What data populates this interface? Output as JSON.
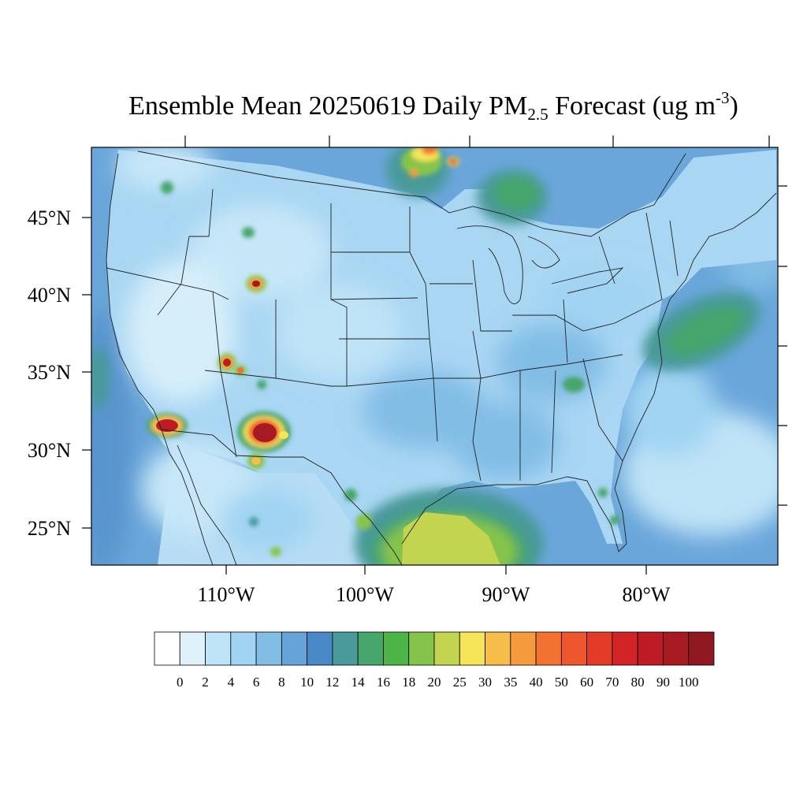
{
  "title": {
    "prefix": "Ensemble Mean 20250619 Daily PM",
    "sub": "2.5",
    "middle": " Forecast (ug m",
    "sup": "-3",
    "suffix": ")"
  },
  "lat_labels": [
    "45°N",
    "40°N",
    "35°N",
    "30°N",
    "25°N"
  ],
  "lon_labels": [
    "110°W",
    "100°W",
    "90°W",
    "80°W"
  ],
  "colorbar": {
    "levels": [
      "0",
      "2",
      "4",
      "6",
      "8",
      "10",
      "12",
      "14",
      "16",
      "18",
      "20",
      "25",
      "30",
      "35",
      "40",
      "50",
      "60",
      "70",
      "80",
      "90",
      "100"
    ],
    "colors": [
      "#ffffff",
      "#dff2fb",
      "#bfe3f7",
      "#a0d4f2",
      "#82bde6",
      "#66a3d9",
      "#4a89c8",
      "#4a9a99",
      "#46a66c",
      "#4db447",
      "#85c44b",
      "#c3d550",
      "#f6e459",
      "#f6bd49",
      "#f59a3d",
      "#f27232",
      "#ee562d",
      "#e23c28",
      "#d22326",
      "#be1b24",
      "#a81a22",
      "#8e1720"
    ]
  },
  "colors": {
    "background": "#66a3d9",
    "land_base": "#a9d6f3"
  }
}
